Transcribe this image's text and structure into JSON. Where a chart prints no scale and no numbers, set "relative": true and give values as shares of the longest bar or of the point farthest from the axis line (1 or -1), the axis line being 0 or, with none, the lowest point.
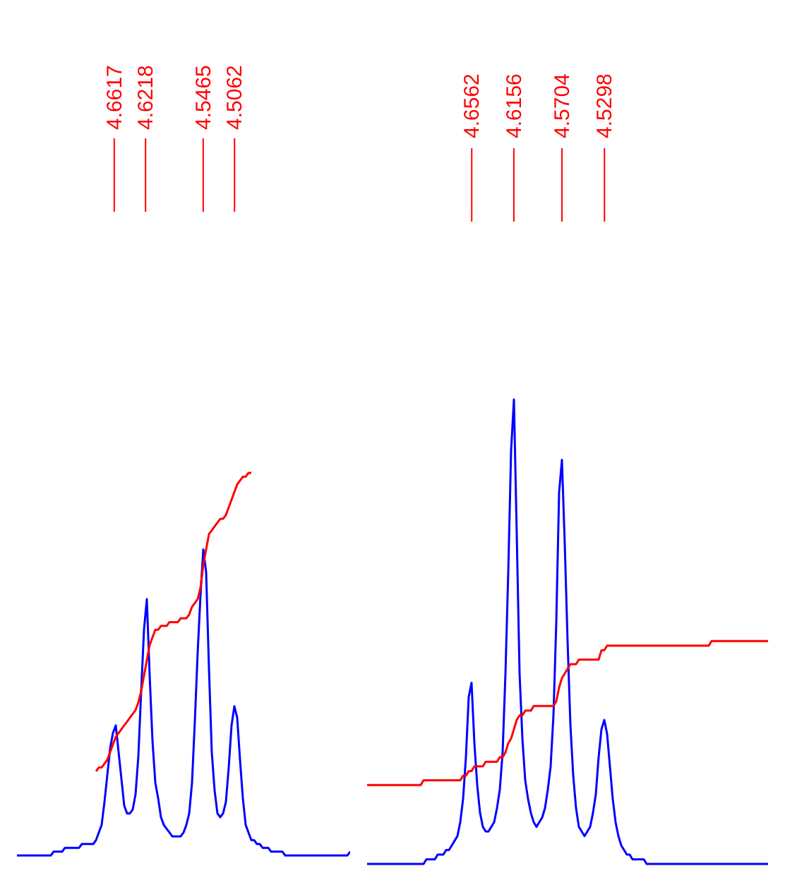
{
  "chart_data": [
    {
      "type": "line",
      "relative": true,
      "annotations": [
        "4.6617",
        "4.6218",
        "4.5465",
        "4.5062"
      ],
      "categories": [
        null,
        null,
        null,
        null,
        null,
        null,
        null,
        null,
        null,
        null,
        null,
        null,
        null,
        null,
        null,
        null,
        null,
        null,
        null,
        null,
        null,
        null,
        null,
        null,
        null,
        null,
        null,
        null,
        null,
        null,
        null,
        null,
        null,
        null,
        null,
        null,
        null,
        null,
        null,
        null,
        null,
        null,
        null,
        null,
        null,
        null,
        null,
        null,
        null,
        null,
        null,
        null,
        null,
        null,
        null,
        null,
        null,
        null,
        null,
        null,
        null,
        null,
        null,
        null,
        null,
        null,
        null,
        null,
        null,
        null,
        null,
        null,
        null,
        null,
        null,
        null,
        null,
        null,
        null,
        null,
        null,
        null,
        null,
        null,
        null,
        null,
        null,
        null,
        null,
        null,
        null,
        null,
        null,
        null,
        null,
        null,
        null,
        null,
        null,
        null,
        null,
        null,
        null,
        null,
        null,
        null,
        null,
        null,
        null,
        null,
        null,
        null,
        null,
        null,
        null,
        null,
        null,
        null,
        null
      ],
      "series": [
        {
          "color": "#0000ff",
          "values": [
            0,
            0,
            0,
            0,
            0,
            0,
            0,
            0,
            0,
            0,
            0,
            0,
            0,
            0.01,
            0.01,
            0.01,
            0.01,
            0.02,
            0.02,
            0.02,
            0.02,
            0.02,
            0.02,
            0.03,
            0.03,
            0.03,
            0.03,
            0.03,
            0.04,
            0.06,
            0.08,
            0.14,
            0.21,
            0.28,
            0.32,
            0.34,
            0.27,
            0.2,
            0.13,
            0.11,
            0.11,
            0.12,
            0.16,
            0.26,
            0.43,
            0.59,
            0.67,
            0.47,
            0.3,
            0.19,
            0.15,
            0.1,
            0.08,
            0.07,
            0.06,
            0.05,
            0.05,
            0.05,
            0.05,
            0.06,
            0.08,
            0.11,
            0.19,
            0.35,
            0.53,
            0.68,
            0.8,
            0.74,
            0.49,
            0.27,
            0.17,
            0.11,
            0.1,
            0.11,
            0.14,
            0.23,
            0.34,
            0.39,
            0.36,
            0.25,
            0.15,
            0.08,
            0.06,
            0.04,
            0.04,
            0.03,
            0.03,
            0.02,
            0.02,
            0.02,
            0.01,
            0.01,
            0.01,
            0.01,
            0.01,
            0,
            0,
            0,
            0,
            0,
            0,
            0,
            0,
            0,
            0,
            0,
            0,
            0,
            0,
            0,
            0,
            0,
            0,
            0,
            0,
            0,
            0,
            0,
            0.01
          ]
        },
        {
          "color": "#ff0000",
          "values": [
            null,
            null,
            null,
            null,
            null,
            null,
            null,
            null,
            null,
            null,
            null,
            null,
            null,
            null,
            null,
            null,
            null,
            null,
            null,
            null,
            null,
            null,
            null,
            null,
            null,
            null,
            null,
            null,
            0.22,
            0.23,
            0.23,
            0.24,
            0.25,
            0.27,
            0.29,
            0.31,
            0.32,
            0.33,
            0.34,
            0.35,
            0.36,
            0.37,
            0.38,
            0.4,
            0.43,
            0.47,
            0.51,
            0.55,
            0.57,
            0.59,
            0.59,
            0.6,
            0.6,
            0.6,
            0.61,
            0.61,
            0.61,
            0.61,
            0.62,
            0.62,
            0.62,
            0.63,
            0.65,
            0.66,
            0.67,
            0.7,
            0.76,
            0.8,
            0.84,
            0.85,
            0.86,
            0.87,
            0.88,
            0.88,
            0.89,
            0.91,
            0.93,
            0.95,
            0.97,
            0.98,
            0.99,
            0.99,
            1,
            1,
            null,
            null,
            null,
            null,
            null,
            null,
            null,
            null,
            null,
            null,
            null,
            null,
            null,
            null,
            null,
            null,
            null,
            null,
            null,
            null,
            null,
            null,
            null,
            null,
            null,
            null,
            null,
            null,
            null,
            null,
            null,
            null,
            null,
            null,
            null
          ]
        }
      ]
    },
    {
      "type": "line",
      "relative": true,
      "annotations": [
        "4.6562",
        "4.6156",
        "4.5704",
        "4.5298"
      ],
      "categories": [
        null,
        null,
        null,
        null,
        null,
        null,
        null,
        null,
        null,
        null,
        null,
        null,
        null,
        null,
        null,
        null,
        null,
        null,
        null,
        null,
        null,
        null,
        null,
        null,
        null,
        null,
        null,
        null,
        null,
        null,
        null,
        null,
        null,
        null,
        null,
        null,
        null,
        null,
        null,
        null,
        null,
        null,
        null,
        null,
        null,
        null,
        null,
        null,
        null,
        null,
        null,
        null,
        null,
        null,
        null,
        null,
        null,
        null,
        null,
        null,
        null,
        null,
        null,
        null,
        null,
        null,
        null,
        null,
        null,
        null,
        null,
        null,
        null,
        null,
        null,
        null,
        null,
        null,
        null,
        null,
        null,
        null,
        null,
        null,
        null,
        null,
        null,
        null,
        null,
        null,
        null,
        null,
        null,
        null,
        null,
        null,
        null,
        null,
        null,
        null,
        null,
        null,
        null,
        null,
        null,
        null,
        null,
        null,
        null,
        null,
        null,
        null,
        null,
        null,
        null,
        null,
        null,
        null,
        null,
        null,
        null,
        null,
        null,
        null,
        null,
        null,
        null,
        null,
        null,
        null,
        null,
        null,
        null,
        null,
        null,
        null,
        null,
        null,
        null,
        null,
        null,
        null,
        null
      ],
      "series": [
        {
          "color": "#0000ff",
          "values": [
            0,
            0,
            0,
            0,
            0,
            0,
            0,
            0,
            0,
            0,
            0,
            0,
            0,
            0,
            0,
            0,
            0,
            0,
            0,
            0,
            0,
            0.01,
            0.01,
            0.01,
            0.01,
            0.02,
            0.02,
            0.02,
            0.03,
            0.03,
            0.04,
            0.05,
            0.06,
            0.09,
            0.14,
            0.23,
            0.36,
            0.39,
            0.26,
            0.17,
            0.11,
            0.08,
            0.07,
            0.07,
            0.08,
            0.09,
            0.12,
            0.16,
            0.24,
            0.41,
            0.63,
            0.89,
            1,
            0.71,
            0.41,
            0.27,
            0.18,
            0.14,
            0.11,
            0.09,
            0.08,
            0.09,
            0.1,
            0.12,
            0.16,
            0.21,
            0.32,
            0.52,
            0.8,
            0.87,
            0.69,
            0.48,
            0.3,
            0.19,
            0.12,
            0.08,
            0.07,
            0.06,
            0.07,
            0.08,
            0.11,
            0.15,
            0.23,
            0.29,
            0.31,
            0.28,
            0.21,
            0.14,
            0.09,
            0.06,
            0.04,
            0.03,
            0.02,
            0.02,
            0.01,
            0.01,
            0.01,
            0.01,
            0.01,
            0,
            0,
            0,
            0,
            0,
            0,
            0,
            0,
            0,
            0,
            0,
            0,
            0,
            0,
            0,
            0,
            0,
            0,
            0,
            0,
            0,
            0,
            0,
            0,
            0,
            0,
            0,
            0,
            0,
            0,
            0,
            0,
            0,
            0,
            0,
            0,
            0,
            0,
            0,
            0,
            0,
            0,
            0,
            0
          ]
        },
        {
          "color": "#ff0000",
          "values": [
            0.17,
            0.17,
            0.17,
            0.17,
            0.17,
            0.17,
            0.17,
            0.17,
            0.17,
            0.17,
            0.17,
            0.17,
            0.17,
            0.17,
            0.17,
            0.17,
            0.17,
            0.17,
            0.17,
            0.17,
            0.18,
            0.18,
            0.18,
            0.18,
            0.18,
            0.18,
            0.18,
            0.18,
            0.18,
            0.18,
            0.18,
            0.18,
            0.18,
            0.18,
            0.19,
            0.19,
            0.2,
            0.2,
            0.21,
            0.21,
            0.21,
            0.21,
            0.22,
            0.22,
            0.22,
            0.22,
            0.22,
            0.23,
            0.23,
            0.24,
            0.26,
            0.27,
            0.29,
            0.31,
            0.32,
            0.32,
            0.33,
            0.33,
            0.33,
            0.34,
            0.34,
            0.34,
            0.34,
            0.34,
            0.34,
            0.34,
            0.34,
            0.35,
            0.38,
            0.4,
            0.41,
            0.42,
            0.43,
            0.43,
            0.43,
            0.44,
            0.44,
            0.44,
            0.44,
            0.44,
            0.44,
            0.44,
            0.44,
            0.46,
            0.46,
            0.47,
            0.47,
            0.47,
            0.47,
            0.47,
            0.47,
            0.47,
            0.47,
            0.47,
            0.47,
            0.47,
            0.47,
            0.47,
            0.47,
            0.47,
            0.47,
            0.47,
            0.47,
            0.47,
            0.47,
            0.47,
            0.47,
            0.47,
            0.47,
            0.47,
            0.47,
            0.47,
            0.47,
            0.47,
            0.47,
            0.47,
            0.47,
            0.47,
            0.47,
            0.47,
            0.47,
            0.47,
            0.48,
            0.48,
            0.48,
            0.48,
            0.48,
            0.48,
            0.48,
            0.48,
            0.48,
            0.48,
            0.48,
            0.48,
            0.48,
            0.48,
            0.48,
            0.48,
            0.48,
            0.48,
            0.48,
            0.48,
            0.48
          ]
        }
      ]
    }
  ]
}
